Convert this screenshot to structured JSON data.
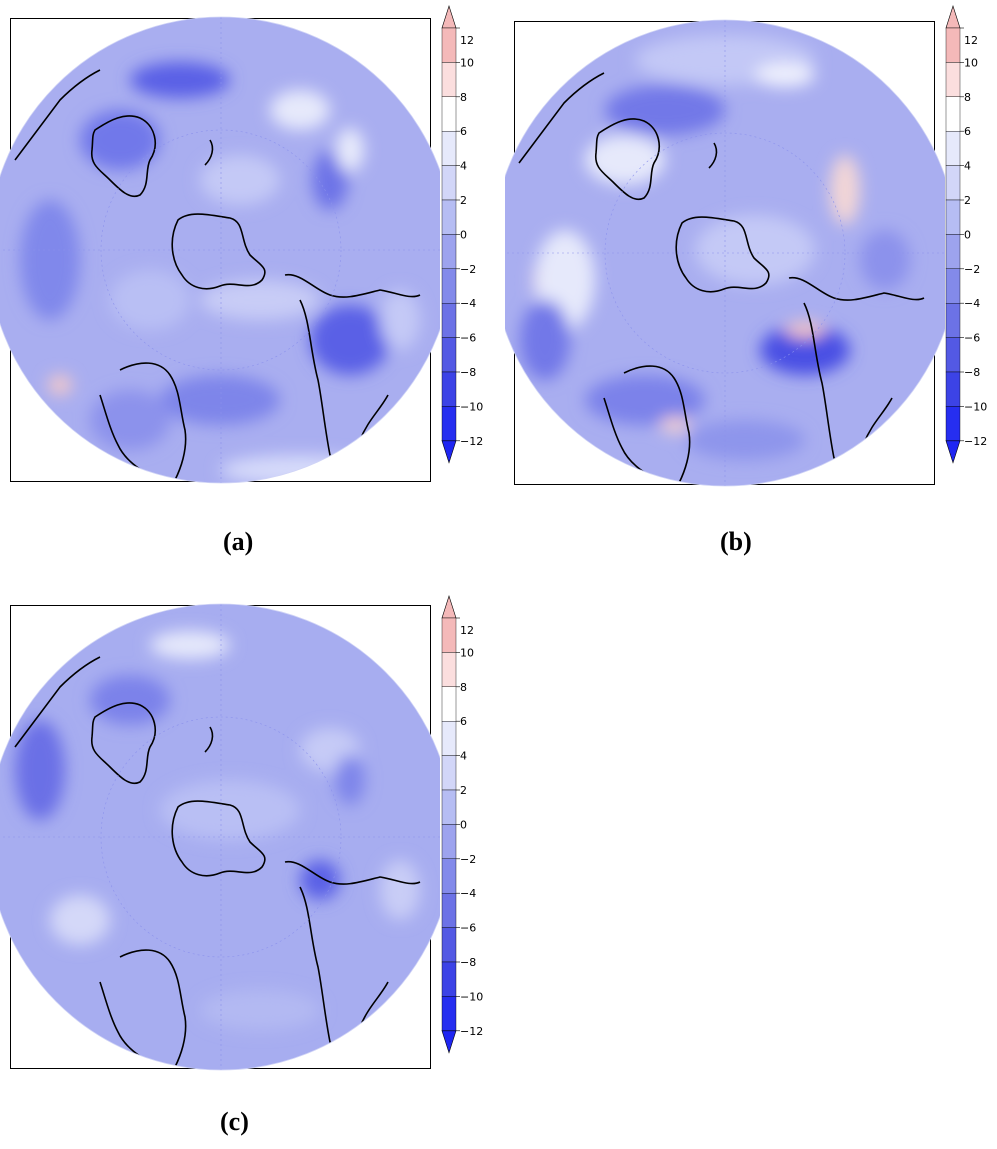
{
  "figure": {
    "panels": [
      {
        "id": "a",
        "caption": "(a)"
      },
      {
        "id": "b",
        "caption": "(b)"
      },
      {
        "id": "c",
        "caption": "(c)"
      }
    ]
  },
  "colorbar": {
    "labels": [
      "12",
      "10",
      "8",
      "6",
      "4",
      "2",
      "0",
      "−2",
      "−4",
      "−6",
      "−8",
      "−10",
      "−12"
    ],
    "colors": [
      "#f4b9b9",
      "#fbdede",
      "#ffffff",
      "#e6e9fb",
      "#d2d6f8",
      "#b6bdf3",
      "#9da3ee",
      "#838aea",
      "#6c72e6",
      "#5359e4",
      "#3c43e6",
      "#262ef0"
    ],
    "tip_top_color": "#f4b9b9",
    "tip_bottom_color": "#1f26f2"
  },
  "map": {
    "projection": "south-polar-stereographic",
    "background_color": "#9ea5ee",
    "coastline_color": "#000000"
  }
}
